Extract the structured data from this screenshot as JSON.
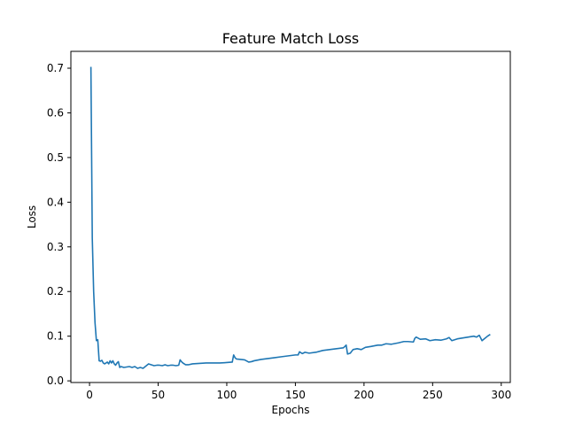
{
  "chart_data": {
    "type": "line",
    "title": "Feature Match Loss",
    "xlabel": "Epochs",
    "ylabel": "Loss",
    "xlim": [
      -13.6,
      306.6
    ],
    "ylim": [
      -0.0037,
      0.7377
    ],
    "xticks": [
      0,
      50,
      100,
      150,
      200,
      250,
      300
    ],
    "yticks": [
      0.0,
      0.1,
      0.2,
      0.3,
      0.4,
      0.5,
      0.6,
      0.7
    ],
    "grid": false,
    "series": [
      {
        "color": "#1f77b4",
        "x": [
          1,
          2,
          3,
          4,
          5,
          6,
          7,
          8,
          9,
          10,
          11,
          12,
          13,
          14,
          15,
          16,
          17,
          18,
          19,
          20,
          21,
          22,
          23,
          25,
          27,
          29,
          31,
          33,
          35,
          37,
          39,
          41,
          43,
          45,
          47,
          49,
          51,
          53,
          55,
          57,
          59,
          61,
          63,
          65,
          66,
          67,
          68,
          70,
          72,
          75,
          80,
          85,
          90,
          95,
          100,
          104,
          105,
          106,
          107,
          110,
          113,
          116,
          118,
          120,
          125,
          130,
          135,
          140,
          145,
          150,
          152,
          153,
          155,
          157,
          160,
          165,
          170,
          175,
          180,
          185,
          187,
          188,
          190,
          192,
          195,
          198,
          201,
          205,
          210,
          213,
          216,
          220,
          225,
          229,
          232,
          236,
          237,
          238,
          241,
          245,
          248,
          252,
          256,
          260,
          262,
          264,
          268,
          272,
          276,
          280,
          282,
          284,
          286,
          290,
          292
        ],
        "y": [
          0.703,
          0.32,
          0.2,
          0.13,
          0.09,
          0.092,
          0.045,
          0.044,
          0.046,
          0.04,
          0.038,
          0.04,
          0.042,
          0.038,
          0.045,
          0.04,
          0.045,
          0.038,
          0.035,
          0.04,
          0.043,
          0.03,
          0.032,
          0.03,
          0.031,
          0.032,
          0.03,
          0.032,
          0.028,
          0.03,
          0.028,
          0.033,
          0.038,
          0.036,
          0.034,
          0.035,
          0.035,
          0.034,
          0.036,
          0.034,
          0.035,
          0.035,
          0.034,
          0.035,
          0.047,
          0.043,
          0.04,
          0.036,
          0.036,
          0.038,
          0.039,
          0.04,
          0.04,
          0.04,
          0.041,
          0.042,
          0.058,
          0.052,
          0.049,
          0.048,
          0.047,
          0.042,
          0.043,
          0.045,
          0.048,
          0.05,
          0.052,
          0.054,
          0.056,
          0.058,
          0.058,
          0.065,
          0.061,
          0.064,
          0.062,
          0.064,
          0.068,
          0.07,
          0.072,
          0.074,
          0.08,
          0.06,
          0.062,
          0.07,
          0.072,
          0.07,
          0.075,
          0.077,
          0.08,
          0.08,
          0.083,
          0.082,
          0.085,
          0.088,
          0.088,
          0.087,
          0.095,
          0.098,
          0.093,
          0.094,
          0.09,
          0.092,
          0.091,
          0.094,
          0.097,
          0.09,
          0.094,
          0.096,
          0.098,
          0.1,
          0.098,
          0.102,
          0.09,
          0.1,
          0.104
        ]
      }
    ]
  }
}
